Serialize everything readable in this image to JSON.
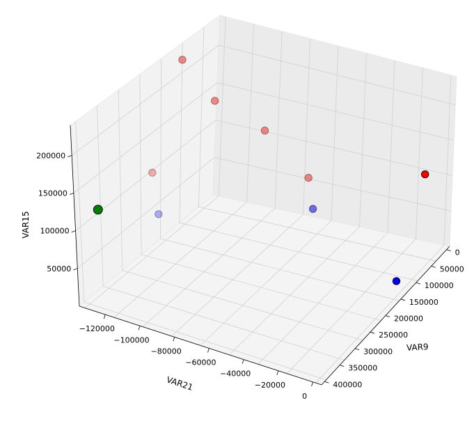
{
  "chart_data": {
    "type": "scatter3d",
    "xlabel": "VAR9",
    "ylabel": "VAR21",
    "zlabel": "VAR15",
    "xticks": [
      "0",
      "50000",
      "100000",
      "150000",
      "200000",
      "250000",
      "300000",
      "350000",
      "400000"
    ],
    "yticks": [
      "−120000",
      "−100000",
      "−80000",
      "−60000",
      "−40000",
      "−20000",
      "0"
    ],
    "zticks": [
      "50000",
      "100000",
      "150000",
      "200000"
    ],
    "grid": true,
    "points": [
      {
        "x": 0,
        "y": -40000,
        "z": 230000,
        "color": "#ff0000",
        "alpha": 0.45
      },
      {
        "x": 60000,
        "y": -40000,
        "z": 185000,
        "color": "#ff0000",
        "alpha": 0.45
      },
      {
        "x": 150000,
        "y": -40000,
        "z": 160000,
        "color": "#ff0000",
        "alpha": 0.45
      },
      {
        "x": 20000,
        "y": -80000,
        "z": 125000,
        "color": "#ff0000",
        "alpha": 0.3
      },
      {
        "x": 230000,
        "y": -40000,
        "z": 110000,
        "color": "#ff0000",
        "alpha": 0.45
      },
      {
        "x": 0,
        "y": -125000,
        "z": 120000,
        "color": "#008000",
        "alpha": 1.0,
        "large": true
      },
      {
        "x": 50000,
        "y": -90000,
        "z": 85000,
        "color": "#0000ff",
        "alpha": 0.3
      },
      {
        "x": 240000,
        "y": -40000,
        "z": 70000,
        "color": "#0000ff",
        "alpha": 0.55
      },
      {
        "x": 370000,
        "y": 0,
        "z": 95000,
        "color": "#ff0000",
        "alpha": 1.0
      },
      {
        "x": 400000,
        "y": -45000,
        "z": 5000,
        "color": "#0000ff",
        "alpha": 1.0
      }
    ]
  }
}
